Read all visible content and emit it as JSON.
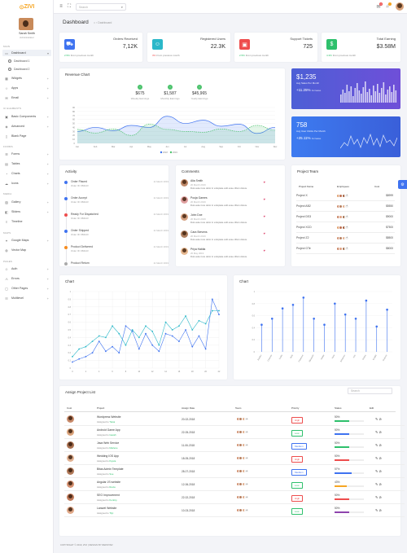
{
  "brand": {
    "name1": "ZIVI",
    "name2": ""
  },
  "user": {
    "name": "Sarah Smith",
    "role": "Administrator"
  },
  "sidebar": {
    "sections": [
      "MAIN",
      "UI ELEMENTS",
      "FORMS",
      "MEDIA",
      "MAPS",
      "PAGES"
    ],
    "items": [
      {
        "label": "Dashboard",
        "icon": "monitor-icon"
      },
      {
        "label": "Widgets",
        "icon": "grid-icon"
      },
      {
        "label": "Apps",
        "icon": "star-icon"
      },
      {
        "label": "Email",
        "icon": "mail-icon"
      },
      {
        "label": "Basic Components",
        "icon": "briefcase-icon"
      },
      {
        "label": "Advanced",
        "icon": "layers-icon"
      },
      {
        "label": "Blank Page",
        "icon": "file-icon"
      },
      {
        "label": "Forms",
        "icon": "form-icon"
      },
      {
        "label": "Tables",
        "icon": "table-icon"
      },
      {
        "label": "Charts",
        "icon": "chart-icon"
      },
      {
        "label": "Icons",
        "icon": "cloud-icon"
      },
      {
        "label": "Gallery",
        "icon": "image-icon"
      },
      {
        "label": "Sliders",
        "icon": "slider-icon"
      },
      {
        "label": "Timeline",
        "icon": "timeline-icon"
      },
      {
        "label": "Google Maps",
        "icon": "map-icon"
      },
      {
        "label": "Vector Map",
        "icon": "globe-icon"
      },
      {
        "label": "Auth",
        "icon": "user-icon"
      },
      {
        "label": "Errors",
        "icon": "alert-icon"
      },
      {
        "label": "Other Pages",
        "icon": "pages-icon"
      },
      {
        "label": "Multilevel",
        "icon": "list-icon"
      }
    ],
    "subitems": [
      "Dashboard 1",
      "Dashboard 2"
    ]
  },
  "topbar": {
    "search_placeholder": "Search",
    "mail_badge": "3",
    "bell_badge": ""
  },
  "page": {
    "title": "Dashboard",
    "crumb": "Dashboard"
  },
  "stats": [
    {
      "title": "Orders Received",
      "value": "7,12K",
      "delta": "2.5%",
      "foot": "From previous month"
    },
    {
      "title": "Registered Users",
      "value": "22.3K",
      "delta": "3%",
      "foot": "From previous month"
    },
    {
      "title": "Support Tickets",
      "value": "725",
      "delta": "2.5%",
      "foot": "From previous month"
    },
    {
      "title": "Total Earning",
      "value": "$3.58M",
      "delta": "4.3%",
      "foot": "From previous month"
    }
  ],
  "revenue": {
    "title": "Revenue Chart",
    "summaries": [
      {
        "value": "$675",
        "label": "Weekly Earnings"
      },
      {
        "value": "$1,587",
        "label": "Monthly Earnings"
      },
      {
        "value": "$45,965",
        "label": "Yearly Earnings"
      }
    ]
  },
  "chart_data": [
    {
      "type": "area",
      "title": "Revenue Chart",
      "categories": [
        "Jan",
        "Feb",
        "Mar",
        "Apr",
        "May",
        "Jun",
        "Jul",
        "Aug",
        "Sep",
        "Oct",
        "Nov",
        "Dec"
      ],
      "ylim": [
        0,
        90
      ],
      "yticks": [
        0,
        10,
        20,
        30,
        40,
        50,
        60,
        70,
        80,
        90
      ],
      "series": [
        {
          "name": "2018",
          "values": [
            30,
            40,
            32,
            45,
            40,
            68,
            50,
            58,
            43,
            48,
            25,
            40
          ]
        },
        {
          "name": "2019",
          "values": [
            35,
            26,
            36,
            20,
            48,
            35,
            30,
            28,
            36,
            30,
            45,
            33
          ]
        }
      ],
      "legend": "bottom"
    },
    {
      "type": "line",
      "title": "Chart",
      "x": [
        0,
        1,
        2,
        3,
        4,
        5,
        6,
        7,
        8,
        9,
        10,
        11,
        12,
        13,
        14,
        15,
        16,
        17,
        18,
        19,
        20,
        21,
        22
      ],
      "xlim": [
        0,
        22
      ],
      "ylim": [
        0,
        1
      ],
      "yticks": [
        0,
        0.1,
        0.2,
        0.3,
        0.4,
        0.5,
        0.6,
        0.7,
        0.8,
        0.9,
        1
      ],
      "series": [
        {
          "values": [
            0.08,
            0.12,
            0.15,
            0.2,
            0.35,
            0.22,
            0.28,
            0.2,
            0.55,
            0.48,
            0.25,
            0.45,
            0.3,
            0.22,
            0.45,
            0.42,
            0.35,
            0.5,
            0.28,
            0.42,
            0.25,
            0.9,
            0.7
          ]
        },
        {
          "values": [
            0.15,
            0.25,
            0.28,
            0.35,
            0.42,
            0.4,
            0.55,
            0.45,
            0.3,
            0.5,
            0.4,
            0.55,
            0.48,
            0.3,
            0.6,
            0.5,
            0.55,
            0.68,
            0.5,
            0.62,
            0.58,
            0.75,
            0.75
          ]
        }
      ]
    },
    {
      "type": "scatter",
      "title": "Chart",
      "categories": [
        "Bayliss",
        "Ostende",
        "Leslie",
        "Viola",
        "Fabienne",
        "Elisabeth",
        "Adelie",
        "Nina",
        "Johannes",
        "Kris",
        "Oddny",
        "Eulalia",
        "Guttorm"
      ],
      "ylim": [
        0,
        1
      ],
      "values": [
        0.45,
        0.55,
        0.72,
        0.78,
        0.9,
        0.55,
        0.45,
        0.8,
        0.62,
        0.55,
        0.85,
        0.42,
        0.7
      ]
    }
  ],
  "gradient_cards": [
    {
      "value": "$1,235",
      "label": "Avg Sales Per Month",
      "pct": "+11.25%",
      "pct_label": "Increase"
    },
    {
      "value": "758",
      "label": "Avg User Clicks Per Month",
      "pct": "+25.11%",
      "pct_label": "Increase"
    }
  ],
  "activity": {
    "title": "Activity",
    "items": [
      {
        "title": "Order Placed",
        "sub": "Order ID: #84123",
        "time": "11 March 2019",
        "color": "#3f73f0"
      },
      {
        "title": "Order Accept",
        "sub": "Order ID: #84123",
        "time": "11 March 2019",
        "color": "#3f73f0"
      },
      {
        "title": "Ready For Dispatched",
        "sub": "Order ID: #84123",
        "time": "11 March 2019",
        "color": "#ee4d4d"
      },
      {
        "title": "Order Shipped",
        "sub": "Order ID: #84123",
        "time": "11 March 2019",
        "color": "#3f73f0"
      },
      {
        "title": "Product Delivered",
        "sub": "Order ID: #84123",
        "time": "11 March 2019",
        "color": "#f68c1f"
      },
      {
        "title": "Product Return",
        "sub": "",
        "time": "11 March 2019",
        "color": "#aaa"
      }
    ]
  },
  "comments": {
    "title": "Comments",
    "items": [
      {
        "name": "Alia Smith",
        "date": "20 March 2019",
        "text": "Duis aute irure dolor in voluptate velit esse cillum dolore."
      },
      {
        "name": "Pooja Games",
        "date": "20 March 2019",
        "text": "Duis aute irure dolor in voluptate velit esse cillum dolore."
      },
      {
        "name": "John Doe",
        "date": "20 March 2019",
        "text": "Duis aute irure dolor in voluptate velit esse cillum dolore."
      },
      {
        "name": "Cara Stevens",
        "date": "20 March 2019",
        "text": "Duis aute irure dolor in voluptate velit esse cillum dolore."
      },
      {
        "name": "Priya Hakita",
        "date": "20 May 2019",
        "text": "Duis aute irure dolor in voluptate velit esse cillum dolore."
      }
    ]
  },
  "team": {
    "title": "Project Team",
    "headers": [
      "Project Name",
      "Employees",
      "Cost"
    ],
    "rows": [
      {
        "name": "Project X",
        "cost": "$8999"
      },
      {
        "name": "Project AB2",
        "cost": "$5550"
      },
      {
        "name": "Project DS3",
        "cost": "$9000"
      },
      {
        "name": "Project XCD",
        "cost": "$7500"
      },
      {
        "name": "Project Z2",
        "cost": "$8500"
      },
      {
        "name": "Project GTe",
        "cost": "$8000"
      }
    ]
  },
  "chart1_title": "Chart",
  "chart2_title": "Chart",
  "assign": {
    "title": "Assign Project List",
    "search_placeholder": "Search",
    "headers": [
      "Cust",
      "Project",
      "Assign Date",
      "Team",
      "Priority",
      "Status",
      "Edit"
    ],
    "rows": [
      {
        "project": "Wordpress Website",
        "assigned": "Tiana",
        "date": "20-02-2018",
        "priority": "High",
        "status": "50%",
        "pct": 50,
        "barcolor": "#2ec06c"
      },
      {
        "project": "Android Game App",
        "assigned": "Gavah",
        "date": "22-05-2018",
        "priority": "Low",
        "status": "50%",
        "pct": 50,
        "barcolor": "#3f73f0"
      },
      {
        "project": "Java Web Service",
        "assigned": "Marlene",
        "date": "11-06-2018",
        "priority": "Medium",
        "status": "50%",
        "pct": 50,
        "barcolor": "#2ec06c"
      },
      {
        "project": "Wedding IOS App",
        "assigned": "Kiyara",
        "date": "18-05-2018",
        "priority": "High",
        "status": "50%",
        "pct": 50,
        "barcolor": "#ee4d4d"
      },
      {
        "project": "Bitas Admin Template",
        "assigned": "Sue",
        "date": "28-07-2018",
        "priority": "Medium",
        "status": "57%",
        "pct": 57,
        "barcolor": "#3f73f0"
      },
      {
        "project": "Angular JS website",
        "assigned": "Rexta",
        "date": "12-06-2018",
        "priority": "Low",
        "status": "43%",
        "pct": 43,
        "barcolor": "#f6a623"
      },
      {
        "project": "SEO Improvement",
        "assigned": "Kentiny",
        "date": "22-02-2018",
        "priority": "High",
        "status": "50%",
        "pct": 50,
        "barcolor": "#ee4d4d"
      },
      {
        "project": "Laravel Website",
        "assigned": "Tilyi",
        "date": "10-03-2018",
        "priority": "Low",
        "status": "50%",
        "pct": 50,
        "barcolor": "#8e44ad"
      }
    ]
  },
  "footer": "COPYRIGHT © 2019, ZIVI | DESIGN BY REDSTAR"
}
